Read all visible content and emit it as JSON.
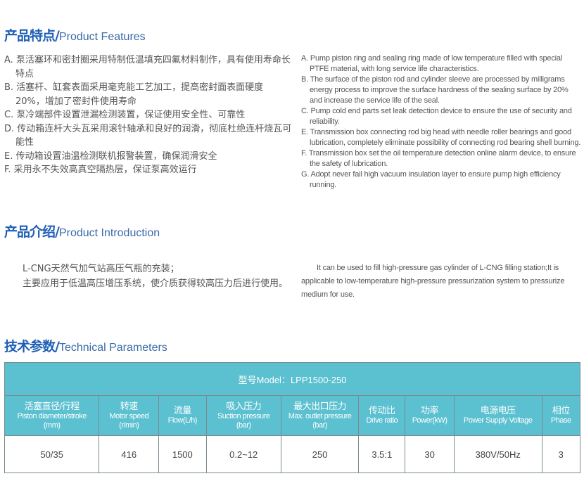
{
  "features": {
    "title_cn": "产品特点/",
    "title_en": "Product Features",
    "cn": [
      "A. 泵活塞环和密封圈采用特制低温填充四氟材料制作，具有使用寿命长特点",
      "B. 活塞杆、缸套表面采用毫克能工艺加工，提高密封面表面硬度20%，增加了密封件使用寿命",
      "C. 泵冷端部件设置泄漏检测装置，保证使用安全性、可靠性",
      "D. 传动箱连杆大头瓦采用滚针轴承和良好的润滑，彻底杜绝连杆烧瓦可能性",
      "E. 传动箱设置油温检测联机报警装置，确保润滑安全",
      "F. 采用永不失效高真空隔热层，保证泵高效运行"
    ],
    "en": [
      "A. Pump piston ring and sealing ring made of low temperature filled with special PTFE material, with long service life characteristics.",
      "B. The surface of the piston rod and cylinder sleeve are processed by milligrams energy process to improve the surface hardness of the sealing surface by 20% and increase the service life of the seal.",
      "C. Pump cold end parts set leak detection device to ensure the use of security and reliability.",
      "E. Transmission box connecting rod big head with needle roller bearings and good lubrication, completely eliminate possibility of connecting rod bearing shell burning.",
      "F. Transmission box set the oil temperature detection online alarm device, to ensure the safety of lubrication.",
      "G. Adopt never fail high vacuum insulation layer to ensure pump high efficiency running."
    ]
  },
  "intro": {
    "title_cn": "产品介绍/",
    "title_en": "Product Introduction",
    "cn1": "L-CNG天然气加气站高压气瓶的充装；",
    "cn2": "主要应用于低温高压增压系统，使介质获得较高压力后进行使用。",
    "en": "It can be used to fill high-pressure gas cylinder of L-CNG filling station;It is applicable to low-temperature high-pressure pressurization system to pressurize medium for use."
  },
  "params": {
    "title_cn": "技术参数/",
    "title_en": "Technical Parameters",
    "model": "型号Model：LPP1500-250",
    "headers": [
      {
        "cn": "活塞直径/行程",
        "en": "Piston diameter/stroke",
        "unit": "(mm)"
      },
      {
        "cn": "转速",
        "en": "Motor speed",
        "unit": "(r/min)"
      },
      {
        "cn": "流量",
        "en": "Flow(L/h)",
        "unit": ""
      },
      {
        "cn": "吸入压力",
        "en": "Suction pressure",
        "unit": "(bar)"
      },
      {
        "cn": "最大出口压力",
        "en": "Max. outlet pressure",
        "unit": "(bar)"
      },
      {
        "cn": "传动比",
        "en": "Drive ratio",
        "unit": ""
      },
      {
        "cn": "功率",
        "en": "Power(kW)",
        "unit": ""
      },
      {
        "cn": "电源电压",
        "en": "Power Supply Voltage",
        "unit": ""
      },
      {
        "cn": "相位",
        "en": "Phase",
        "unit": ""
      }
    ],
    "values": [
      "50/35",
      "416",
      "1500",
      "0.2~12",
      "250",
      "3.5:1",
      "30",
      "380V/50Hz",
      "3"
    ]
  }
}
